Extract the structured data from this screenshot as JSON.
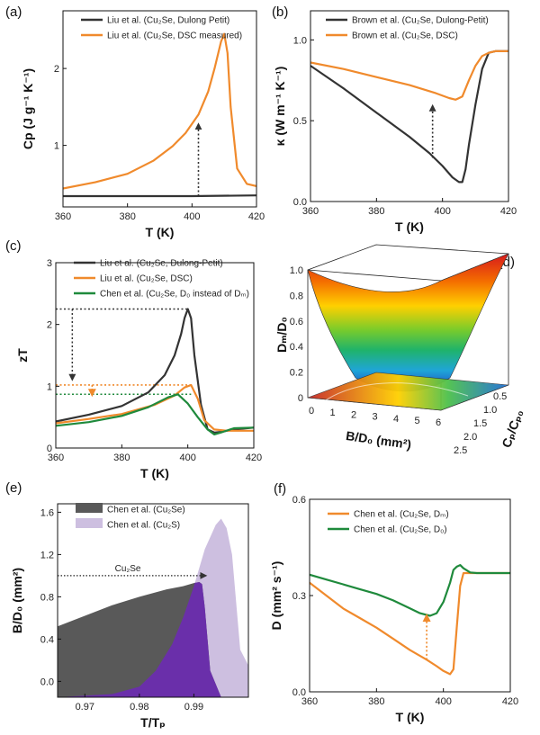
{
  "chart_data": [
    {
      "id": "a",
      "type": "line",
      "panel_label": "(a)",
      "xlabel": "T (K)",
      "ylabel": "Cp (J g⁻¹ K⁻¹)",
      "xlim": [
        360,
        420
      ],
      "ylim": [
        0.2,
        2.75
      ],
      "xticks": [
        360,
        380,
        400,
        420
      ],
      "yticks": [
        1,
        2
      ],
      "series": [
        {
          "name": "Liu et al. (Cu₂Se, Dulong Petit)",
          "color": "#333333",
          "x": [
            360,
            380,
            400,
            420
          ],
          "y": [
            0.34,
            0.34,
            0.34,
            0.35
          ]
        },
        {
          "name": "Liu et al. (Cu₂Se, DSC measured)",
          "color": "#f08a2c",
          "x": [
            360,
            370,
            380,
            388,
            394,
            398,
            402,
            405,
            407,
            409,
            410,
            411,
            412,
            414,
            417,
            420
          ],
          "y": [
            0.44,
            0.52,
            0.63,
            0.8,
            0.99,
            1.16,
            1.4,
            1.7,
            2.0,
            2.35,
            2.45,
            2.2,
            1.5,
            0.7,
            0.5,
            0.47
          ]
        }
      ],
      "annotations": [
        {
          "type": "dotted-arrow",
          "x": 402,
          "y_from": 0.34,
          "y_to": 1.25
        }
      ]
    },
    {
      "id": "b",
      "type": "line",
      "panel_label": "(b)",
      "xlabel": "T (K)",
      "ylabel": "κ (W m⁻¹ K⁻¹)",
      "xlim": [
        360,
        420
      ],
      "ylim": [
        0.0,
        1.18
      ],
      "xticks": [
        360,
        380,
        400,
        420
      ],
      "yticks": [
        0.0,
        0.5,
        1.0
      ],
      "series": [
        {
          "name": "Brown et al. (Cu₂Se, Dulong-Petit)",
          "color": "#333333",
          "x": [
            360,
            370,
            380,
            390,
            396,
            400,
            403,
            405,
            406,
            407,
            408,
            410,
            412,
            414,
            416,
            420
          ],
          "y": [
            0.84,
            0.7,
            0.55,
            0.4,
            0.3,
            0.22,
            0.15,
            0.12,
            0.12,
            0.2,
            0.35,
            0.6,
            0.82,
            0.92,
            0.93,
            0.93
          ]
        },
        {
          "name": "Brown et al. (Cu₂Se, DSC)",
          "color": "#f08a2c",
          "x": [
            360,
            370,
            380,
            390,
            398,
            402,
            404,
            406,
            408,
            410,
            412,
            414,
            416,
            420
          ],
          "y": [
            0.86,
            0.82,
            0.77,
            0.72,
            0.67,
            0.64,
            0.63,
            0.65,
            0.75,
            0.84,
            0.9,
            0.92,
            0.93,
            0.93
          ]
        }
      ],
      "annotations": [
        {
          "type": "dotted-arrow",
          "x": 397,
          "y_from": 0.27,
          "y_to": 0.58
        }
      ]
    },
    {
      "id": "c",
      "type": "line",
      "panel_label": "(c)",
      "xlabel": "T (K)",
      "ylabel": "zT",
      "xlim": [
        360,
        420
      ],
      "ylim": [
        0.0,
        3.0
      ],
      "xticks": [
        360,
        380,
        400,
        420
      ],
      "yticks": [
        0,
        1,
        2,
        3
      ],
      "series": [
        {
          "name": "Liu et al. (Cu₂Se, Dulong-Petit)",
          "color": "#333333",
          "x": [
            360,
            370,
            380,
            388,
            393,
            396,
            398,
            399,
            400,
            401,
            402,
            404,
            406,
            408,
            410,
            414,
            420
          ],
          "y": [
            0.43,
            0.54,
            0.68,
            0.9,
            1.18,
            1.5,
            1.85,
            2.1,
            2.25,
            2.1,
            1.5,
            0.7,
            0.3,
            0.25,
            0.26,
            0.3,
            0.33
          ]
        },
        {
          "name": "Liu et al. (Cu₂Se, DSC)",
          "color": "#f08a2c",
          "x": [
            360,
            370,
            380,
            390,
            396,
            399,
            401,
            403,
            405,
            408,
            412,
            420
          ],
          "y": [
            0.4,
            0.47,
            0.55,
            0.7,
            0.85,
            0.98,
            1.02,
            0.8,
            0.45,
            0.3,
            0.28,
            0.28
          ]
        },
        {
          "name": "Chen et al. (Cu₂Se, D₀ instead of Dₘ)",
          "color": "#1f8a3c",
          "x": [
            360,
            370,
            380,
            388,
            394,
            397,
            400,
            403,
            406,
            408,
            410,
            414,
            420
          ],
          "y": [
            0.36,
            0.42,
            0.52,
            0.66,
            0.82,
            0.87,
            0.72,
            0.5,
            0.3,
            0.22,
            0.25,
            0.32,
            0.33
          ]
        }
      ],
      "reference_lines": [
        {
          "y": 2.25,
          "color": "#333333"
        },
        {
          "y": 1.02,
          "color": "#f08a2c"
        },
        {
          "y": 0.87,
          "color": "#1f8a3c"
        }
      ]
    },
    {
      "id": "d",
      "type": "heatmap",
      "panel_label": "(d)",
      "xlabel": "B/D₀ (mm²)",
      "ylabel": "Dₘ/D₀",
      "zlabel": "Cₚ/Cₚ₀",
      "xticks": [
        0,
        1,
        2,
        3,
        4,
        5,
        6
      ],
      "yticks": [
        0,
        0.2,
        0.4,
        0.6,
        0.8,
        1.0
      ],
      "zticks": [
        0.5,
        1.0,
        1.5,
        2.0,
        2.5
      ]
    },
    {
      "id": "e",
      "type": "area",
      "panel_label": "(e)",
      "xlabel": "T/Tₚ",
      "ylabel": "B/D₀ (mm²)",
      "xlim": [
        0.965,
        1.0
      ],
      "ylim": [
        -0.15,
        1.68
      ],
      "xticks": [
        0.97,
        0.98,
        0.99
      ],
      "yticks": [
        0.0,
        0.4,
        0.8,
        1.2,
        1.6
      ],
      "series": [
        {
          "name": "Chen et al. (Cu₂Se)",
          "color": "#595959",
          "x": [
            0.965,
            0.97,
            0.975,
            0.98,
            0.985,
            0.988,
            0.99,
            0.991,
            0.9915,
            0.992,
            0.993,
            0.995,
            1.0
          ],
          "y": [
            0.52,
            0.62,
            0.72,
            0.8,
            0.87,
            0.9,
            0.93,
            0.94,
            0.92,
            0.7,
            0.1,
            -0.15,
            -0.15
          ]
        },
        {
          "name": "Chen et al. (Cu₂S)",
          "color": "#cdbfe0",
          "x": [
            0.965,
            0.975,
            0.98,
            0.983,
            0.986,
            0.988,
            0.99,
            0.992,
            0.994,
            0.995,
            0.996,
            0.997,
            0.998,
            0.9985,
            1.0
          ],
          "y": [
            -0.15,
            -0.12,
            -0.05,
            0.1,
            0.35,
            0.6,
            0.9,
            1.25,
            1.48,
            1.54,
            1.45,
            1.2,
            0.6,
            0.3,
            0.15
          ]
        }
      ],
      "overlap_color": "#6a2faa",
      "annotations": [
        {
          "type": "dotted-arrow",
          "label": "Cu₂Se",
          "y": 1.0,
          "x_from": 0.965,
          "x_to": 0.9918
        }
      ]
    },
    {
      "id": "f",
      "type": "line",
      "panel_label": "(f)",
      "xlabel": "T (K)",
      "ylabel": "D (mm² s⁻¹)",
      "xlim": [
        360,
        420
      ],
      "ylim": [
        0.0,
        0.6
      ],
      "xticks": [
        360,
        380,
        400,
        420
      ],
      "yticks": [
        0.0,
        0.3,
        0.6
      ],
      "series": [
        {
          "name": "Chen et al. (Cu₂Se, Dₘ)",
          "color": "#f08a2c",
          "x": [
            360,
            365,
            370,
            375,
            380,
            385,
            390,
            395,
            398,
            400,
            402,
            403,
            404,
            405,
            406,
            408,
            410,
            415,
            420
          ],
          "y": [
            0.34,
            0.3,
            0.26,
            0.23,
            0.2,
            0.165,
            0.13,
            0.1,
            0.08,
            0.065,
            0.055,
            0.07,
            0.2,
            0.33,
            0.37,
            0.37,
            0.37,
            0.37,
            0.37
          ]
        },
        {
          "name": "Chen et al. (Cu₂Se, D₀)",
          "color": "#1f8a3c",
          "x": [
            360,
            365,
            370,
            375,
            380,
            385,
            390,
            393,
            396,
            398,
            400,
            402,
            403,
            404,
            405,
            406,
            408,
            410,
            415,
            420
          ],
          "y": [
            0.365,
            0.35,
            0.335,
            0.32,
            0.305,
            0.285,
            0.26,
            0.245,
            0.237,
            0.245,
            0.28,
            0.34,
            0.38,
            0.39,
            0.395,
            0.385,
            0.372,
            0.37,
            0.37,
            0.37
          ]
        }
      ],
      "annotations": [
        {
          "type": "dotted-arrow",
          "x": 395,
          "y_from": 0.1,
          "y_to": 0.23
        }
      ]
    }
  ]
}
